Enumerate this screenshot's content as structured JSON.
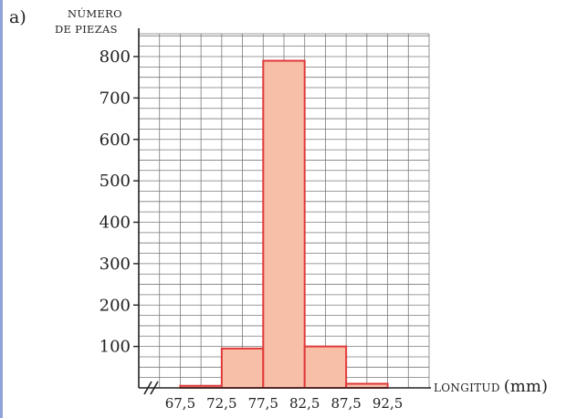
{
  "figure": {
    "part_label": "a)"
  },
  "chart_data": {
    "type": "bar",
    "ylabel_line1": "NÚMERO",
    "ylabel_line2": "DE PIEZAS",
    "xlabel": "LONGITUD",
    "xlabel_unit": "(mm)",
    "x_ticks": [
      "67,5",
      "72,5",
      "77,5",
      "82,5",
      "87,5",
      "92,5"
    ],
    "y_ticks": [
      100,
      200,
      300,
      400,
      500,
      600,
      700,
      800
    ],
    "ylim": [
      0,
      800
    ],
    "bins": [
      {
        "from": 67.5,
        "to": 72.5,
        "value": 5
      },
      {
        "from": 72.5,
        "to": 77.5,
        "value": 95
      },
      {
        "from": 77.5,
        "to": 82.5,
        "value": 790
      },
      {
        "from": 82.5,
        "to": 87.5,
        "value": 100
      },
      {
        "from": 87.5,
        "to": 92.5,
        "value": 10
      }
    ],
    "grid": true,
    "axis_break": true,
    "colors": {
      "bar_fill": "#f7bfa8",
      "bar_edge": "#e03a3a",
      "grid": "#7a7a7a",
      "axis": "#222222"
    }
  }
}
